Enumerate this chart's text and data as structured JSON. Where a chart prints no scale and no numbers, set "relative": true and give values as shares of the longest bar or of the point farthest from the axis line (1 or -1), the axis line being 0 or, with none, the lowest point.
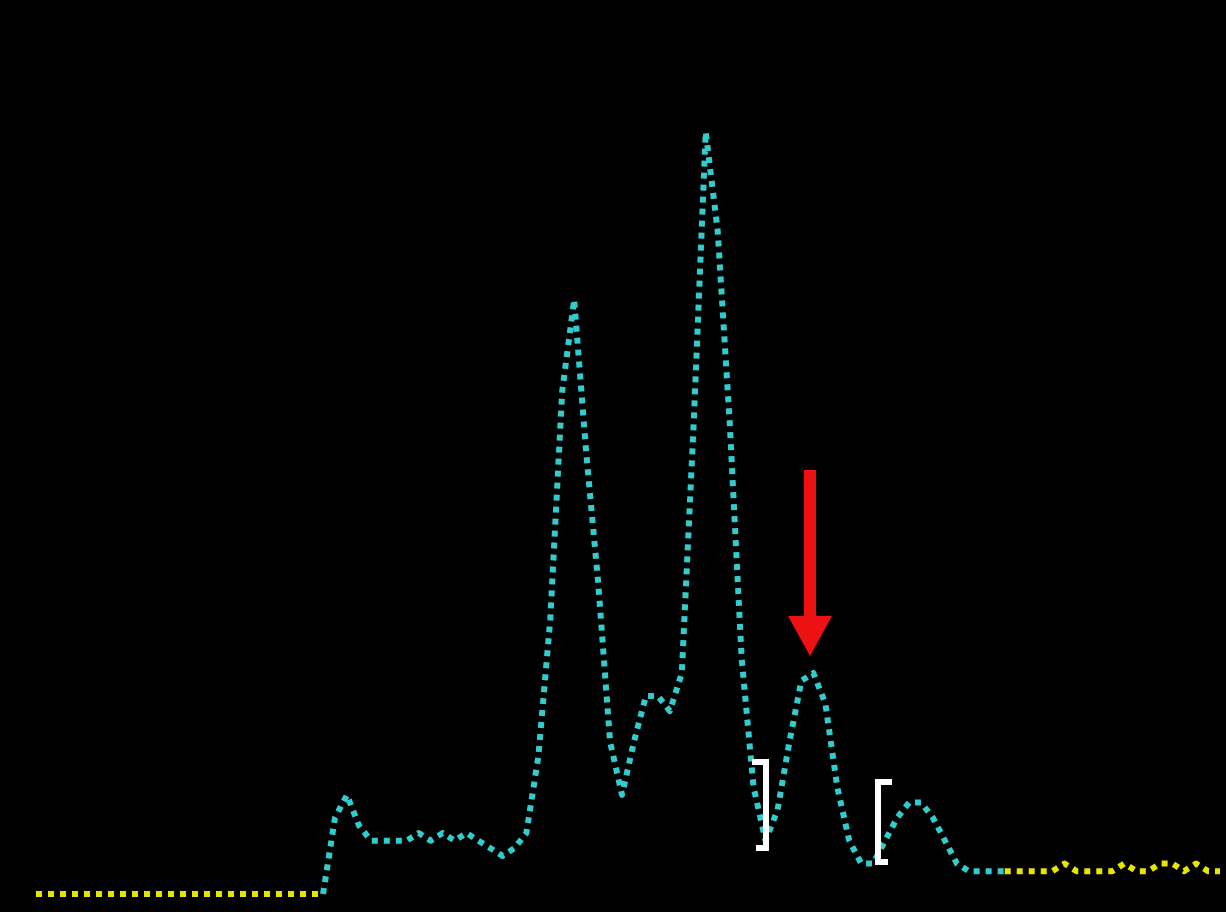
{
  "chart_data": {
    "type": "line",
    "relative": true,
    "line_style": "dotted",
    "marker": "none",
    "categories": [
      null,
      null,
      null,
      null,
      null,
      null,
      null,
      null,
      null,
      null,
      null,
      null,
      null,
      null,
      null,
      null,
      null,
      null,
      null,
      null,
      null,
      null,
      null,
      null,
      null,
      null,
      null,
      null,
      null,
      null,
      null,
      null,
      null,
      null,
      null,
      null,
      null,
      null,
      null,
      null,
      null,
      null,
      null,
      null,
      null,
      null,
      null,
      null,
      null,
      null,
      null,
      null,
      null,
      null,
      null,
      null,
      null,
      null,
      null,
      null,
      null,
      null,
      null,
      null,
      null,
      null,
      null,
      null,
      null,
      null,
      null,
      null,
      null,
      null,
      null,
      null,
      null,
      null,
      null,
      null,
      null,
      null,
      null,
      null,
      null,
      null,
      null,
      null,
      null,
      null,
      null,
      null,
      null,
      null,
      null,
      null,
      null,
      null,
      null,
      null
    ],
    "series": [
      {
        "color": "#e6e600",
        "values": [
          0,
          0,
          0,
          0,
          0,
          0,
          0,
          0,
          0,
          0,
          0,
          0,
          0,
          0,
          0,
          0,
          0,
          0,
          0,
          0,
          0,
          0,
          0,
          0,
          0,
          null,
          null,
          null,
          null,
          null,
          null,
          null,
          null,
          null,
          null,
          null,
          null,
          null,
          null,
          null,
          null,
          null,
          null,
          null,
          null,
          null,
          null,
          null,
          null,
          null,
          null,
          null,
          null,
          null,
          null,
          null,
          null,
          null,
          null,
          null,
          null,
          null,
          null,
          null,
          null,
          null,
          null,
          null,
          null,
          null,
          null,
          null,
          null,
          null,
          null,
          null,
          null,
          null,
          null,
          null,
          null,
          null,
          null,
          null,
          null,
          null,
          null,
          null,
          null,
          null,
          null,
          null,
          null,
          null,
          null,
          null,
          null,
          null,
          null,
          null
        ]
      },
      {
        "color": "#33cccc",
        "values": [
          null,
          null,
          null,
          null,
          null,
          null,
          null,
          null,
          null,
          null,
          null,
          null,
          null,
          null,
          null,
          null,
          null,
          null,
          null,
          null,
          null,
          null,
          null,
          null,
          0,
          0.1,
          0.13,
          0.09,
          0.07,
          0.07,
          0.07,
          0.07,
          0.08,
          0.07,
          0.08,
          0.07,
          0.08,
          0.07,
          0.06,
          0.05,
          0.06,
          0.08,
          0.18,
          0.36,
          0.66,
          0.78,
          0.58,
          0.41,
          0.2,
          0.13,
          0.2,
          0.26,
          0.26,
          0.24,
          0.29,
          0.62,
          1,
          0.87,
          0.62,
          0.31,
          0.14,
          0.07,
          0.11,
          0.2,
          0.28,
          0.29,
          0.25,
          0.14,
          0.07,
          0.04,
          0.04,
          0.07,
          0.1,
          0.12,
          0.12,
          0.1,
          0.07,
          0.04,
          0.03,
          0.03,
          0.03,
          0.03,
          null,
          null,
          null,
          null,
          null,
          null,
          null,
          null,
          null,
          null,
          null,
          null,
          null,
          null,
          null,
          null,
          null,
          null
        ]
      },
      {
        "color": "#e6e600",
        "values": [
          null,
          null,
          null,
          null,
          null,
          null,
          null,
          null,
          null,
          null,
          null,
          null,
          null,
          null,
          null,
          null,
          null,
          null,
          null,
          null,
          null,
          null,
          null,
          null,
          null,
          null,
          null,
          null,
          null,
          null,
          null,
          null,
          null,
          null,
          null,
          null,
          null,
          null,
          null,
          null,
          null,
          null,
          null,
          null,
          null,
          null,
          null,
          null,
          null,
          null,
          null,
          null,
          null,
          null,
          null,
          null,
          null,
          null,
          null,
          null,
          null,
          null,
          null,
          null,
          null,
          null,
          null,
          null,
          null,
          null,
          null,
          null,
          null,
          null,
          null,
          null,
          null,
          null,
          null,
          null,
          null,
          0.03,
          0.03,
          0.03,
          0.03,
          0.03,
          0.04,
          0.03,
          0.03,
          0.03,
          0.03,
          0.04,
          0.03,
          0.03,
          0.04,
          0.04,
          0.03,
          0.04,
          0.03,
          0.03
        ]
      }
    ]
  }
}
